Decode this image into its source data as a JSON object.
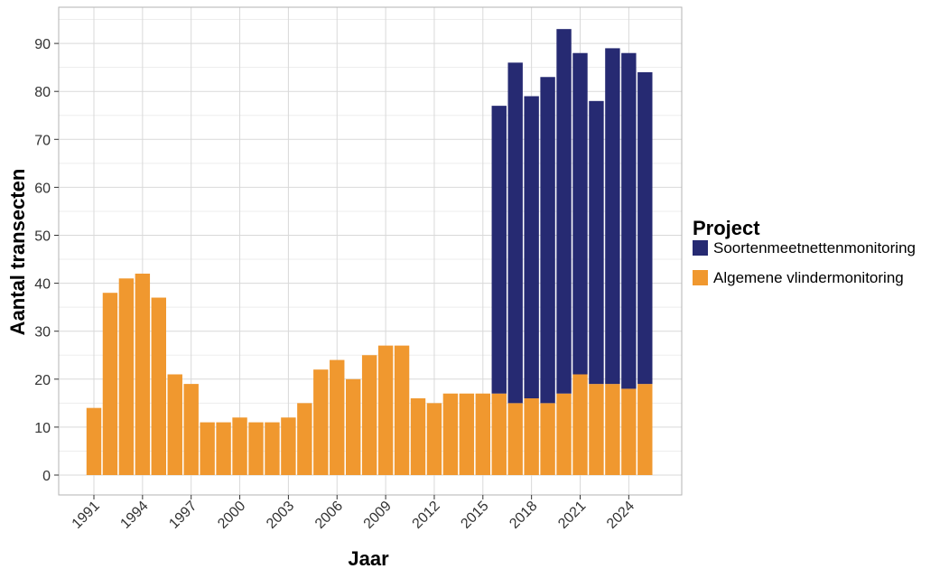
{
  "chart_data": {
    "type": "bar",
    "stacked": true,
    "title": "",
    "xlabel": "Jaar",
    "ylabel": "Aantal transecten",
    "ylim": [
      0,
      95
    ],
    "yticks": [
      0,
      10,
      20,
      30,
      40,
      50,
      60,
      70,
      80,
      90
    ],
    "xticks": [
      "1991",
      "1994",
      "1997",
      "2000",
      "2003",
      "2006",
      "2009",
      "2012",
      "2015",
      "2018",
      "2021",
      "2024"
    ],
    "grid": true,
    "legend": {
      "title": "Project",
      "position": "right"
    },
    "x": [
      1991,
      1992,
      1993,
      1994,
      1995,
      1996,
      1997,
      1998,
      1999,
      2000,
      2001,
      2002,
      2003,
      2004,
      2005,
      2006,
      2007,
      2008,
      2009,
      2010,
      2011,
      2012,
      2013,
      2014,
      2015,
      2016,
      2017,
      2018,
      2019,
      2020,
      2021,
      2022,
      2023,
      2024,
      2025
    ],
    "series": [
      {
        "name": "Algemene vlindermonitoring",
        "color": "#F0982F",
        "values": [
          14,
          38,
          41,
          42,
          37,
          21,
          19,
          11,
          11,
          12,
          11,
          11,
          12,
          15,
          22,
          24,
          20,
          25,
          27,
          27,
          16,
          15,
          17,
          17,
          17,
          17,
          15,
          16,
          15,
          17,
          21,
          19,
          19,
          18,
          19
        ]
      },
      {
        "name": "Soortenmeetnettenmonitoring",
        "color": "#262A72",
        "values": [
          0,
          0,
          0,
          0,
          0,
          0,
          0,
          0,
          0,
          0,
          0,
          0,
          0,
          0,
          0,
          0,
          0,
          0,
          0,
          0,
          0,
          0,
          0,
          0,
          0,
          60,
          71,
          63,
          68,
          76,
          67,
          59,
          70,
          70,
          65
        ]
      }
    ],
    "legend_order": [
      "Soortenmeetnettenmonitoring",
      "Algemene vlindermonitoring"
    ],
    "colors": {
      "grid": "#D9D9D9",
      "panel_border": "#B3B3B3",
      "background": "#FFFFFF"
    }
  }
}
